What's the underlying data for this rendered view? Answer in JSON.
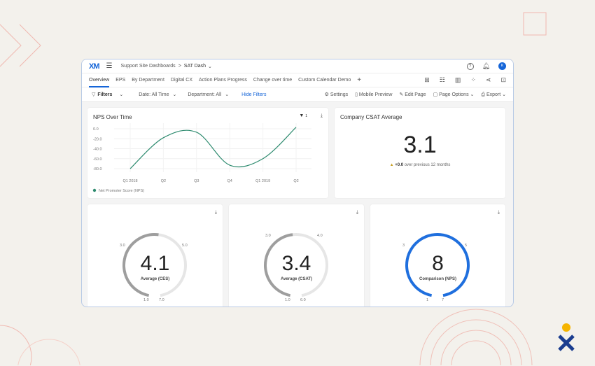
{
  "header": {
    "logo": "XM",
    "breadcrumb_parent": "Support Site Dashboards",
    "breadcrumb_sep": ">",
    "breadcrumb_current": "SAT Dash",
    "avatar": "K"
  },
  "tabs": [
    {
      "label": "Overview",
      "active": true
    },
    {
      "label": "EPS"
    },
    {
      "label": "By Department"
    },
    {
      "label": "Digital CX"
    },
    {
      "label": "Action Plans Progress"
    },
    {
      "label": "Change over time"
    },
    {
      "label": "Custom Calendar Demo"
    },
    {
      "label": "+"
    }
  ],
  "filters": {
    "filters_label": "Filters",
    "date": "Date: All Time",
    "department": "Department: All",
    "hide": "Hide Filters"
  },
  "toolbar": {
    "settings": "Settings",
    "mobile": "Mobile Preview",
    "edit": "Edit Page",
    "options": "Page Options",
    "export": "Export"
  },
  "nps_card": {
    "title": "NPS Over Time",
    "filter_count": "1"
  },
  "chart_data": {
    "type": "line",
    "categories": [
      "Q1 2018",
      "Q2",
      "Q3",
      "Q4",
      "Q1 2019",
      "Q2"
    ],
    "series": [
      {
        "name": "Net Promoter Score (NPS)",
        "values": [
          -80,
          -18,
          -7,
          -73,
          -60,
          3
        ],
        "color": "#2e8b6f"
      }
    ],
    "yticks": [
      "0.0",
      "-20.0",
      "-40.0",
      "-60.0",
      "-80.0"
    ],
    "ylim": [
      -90,
      5
    ],
    "legend": "bottom-left",
    "grid": true
  },
  "csat_card": {
    "title": "Company CSAT Average",
    "value": "3.1",
    "delta": "+0.0",
    "delta_text": "over previous 12 months"
  },
  "gauges": [
    {
      "value": "4.1",
      "label": "Average (CES)",
      "min": "1.0",
      "max": "7.0",
      "left": "3.0",
      "right": "5.0",
      "fraction": 0.52,
      "color": "#9e9e9e"
    },
    {
      "value": "3.4",
      "label": "Average (CSAT)",
      "min": "1.0",
      "max": "6.0",
      "left": "3.0",
      "right": "4.0",
      "fraction": 0.48,
      "color": "#9e9e9e"
    },
    {
      "value": "8",
      "label": "Comparison (NPS)",
      "min": "1",
      "max": "7",
      "left": "3",
      "right": "5",
      "fraction": 1.0,
      "color": "#1f6fde"
    }
  ]
}
